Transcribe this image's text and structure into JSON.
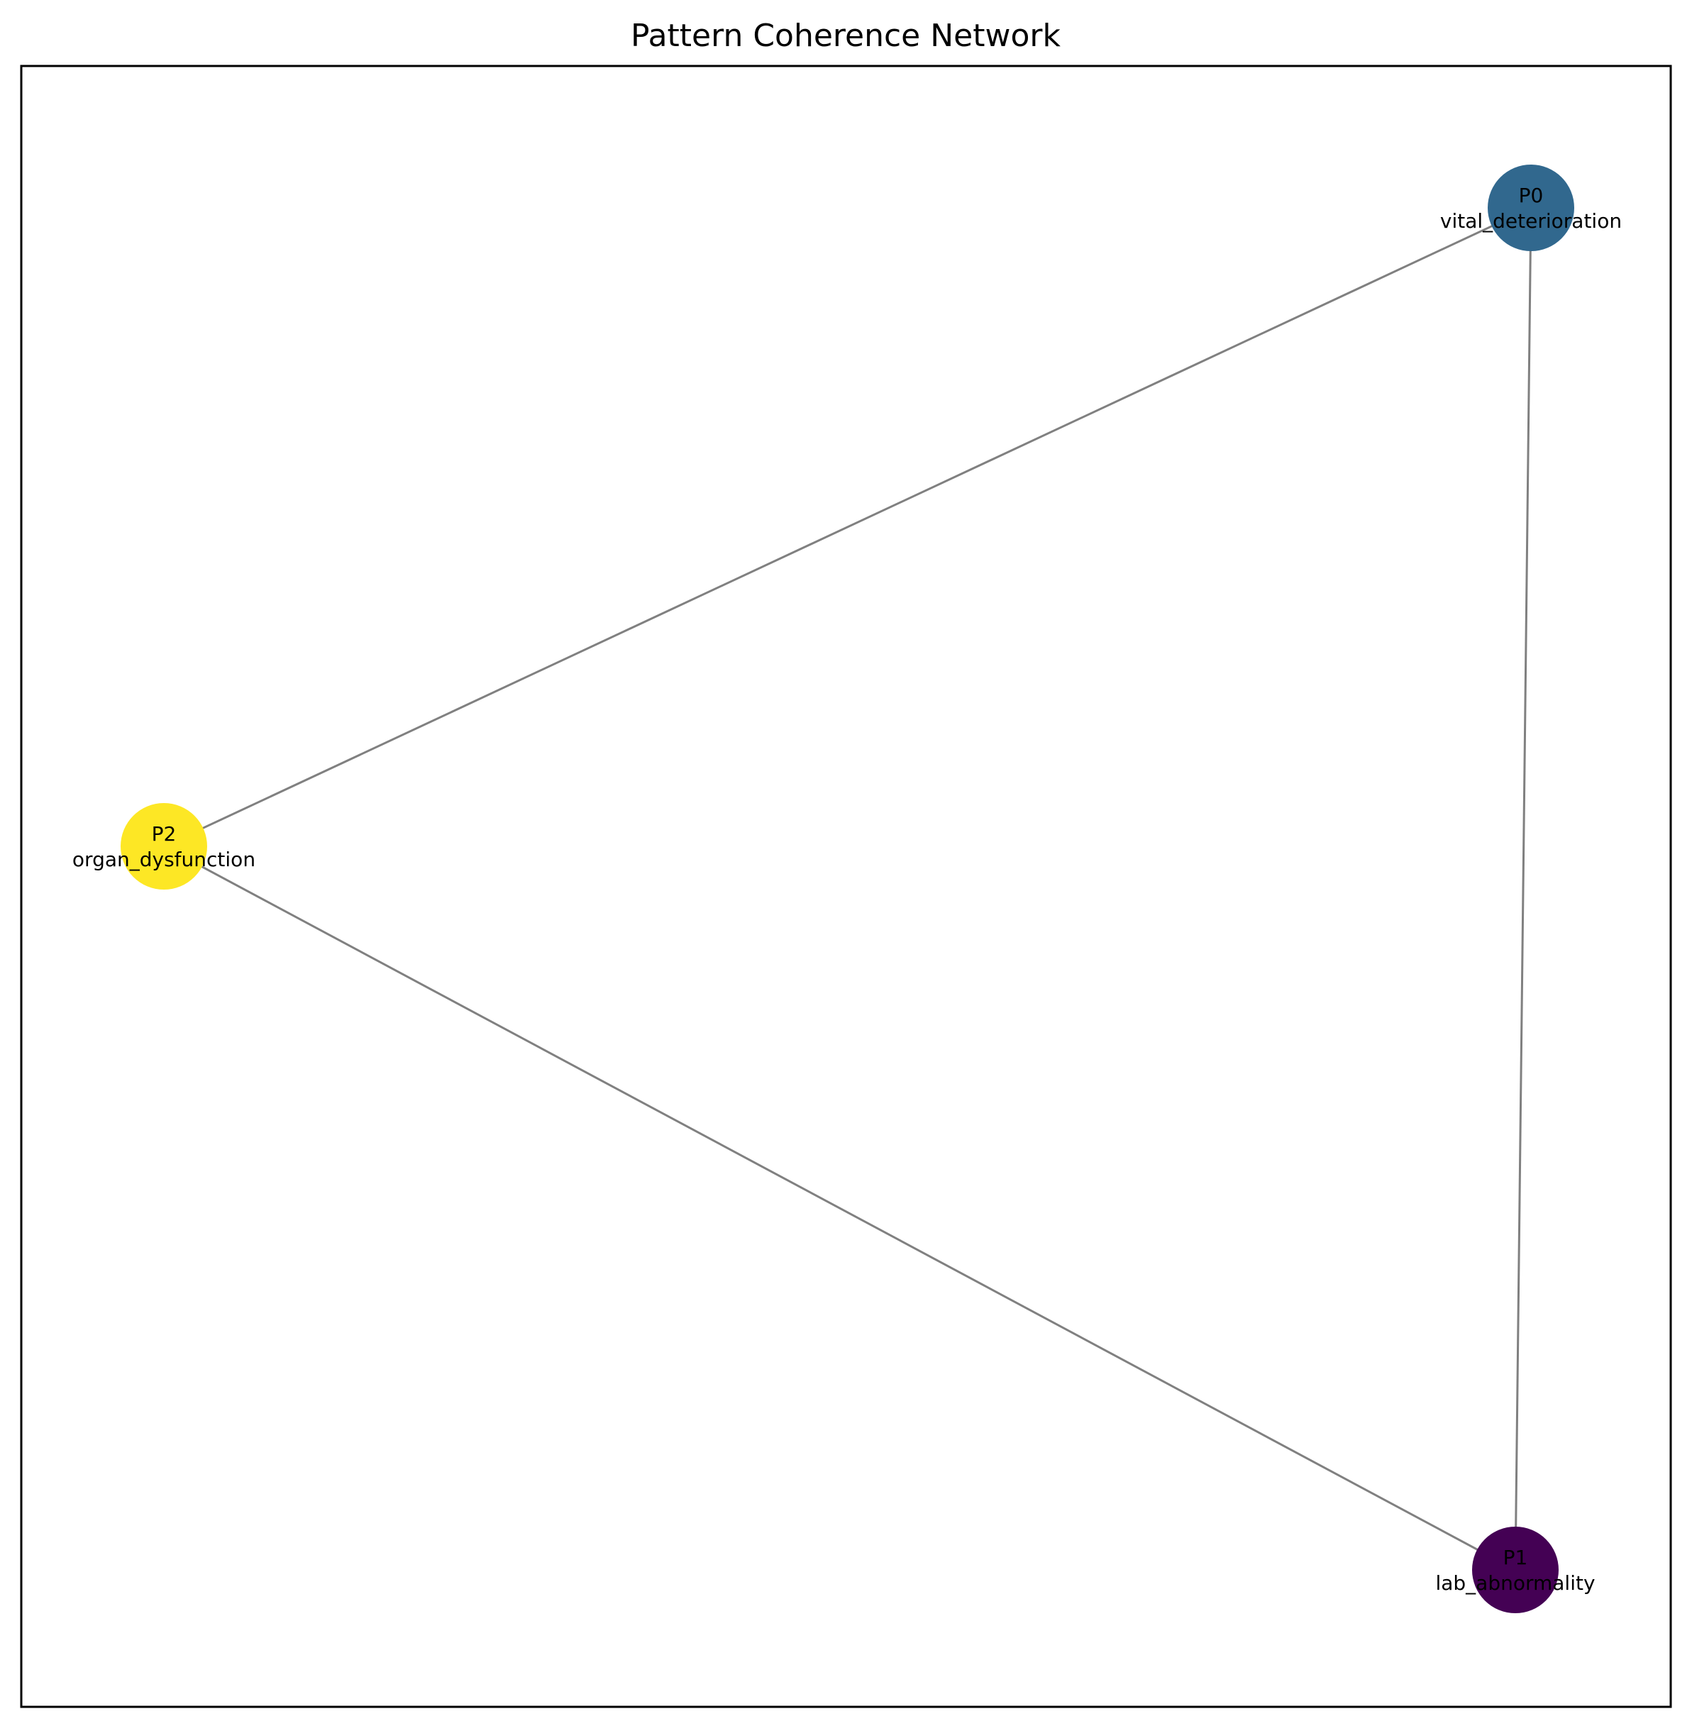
{
  "chart_data": {
    "type": "network",
    "title": "Pattern Coherence Network",
    "nodes": [
      {
        "id": "P0",
        "name": "vital_deterioration",
        "color": "#31688e"
      },
      {
        "id": "P1",
        "name": "lab_abnormality",
        "color": "#440154"
      },
      {
        "id": "P2",
        "name": "organ_dysfunction",
        "color": "#fde725"
      }
    ],
    "edges": [
      {
        "source": "P0",
        "target": "P2"
      },
      {
        "source": "P0",
        "target": "P1"
      },
      {
        "source": "P2",
        "target": "P1"
      }
    ],
    "edge_color": "#808080",
    "frame_color": "#000000"
  }
}
